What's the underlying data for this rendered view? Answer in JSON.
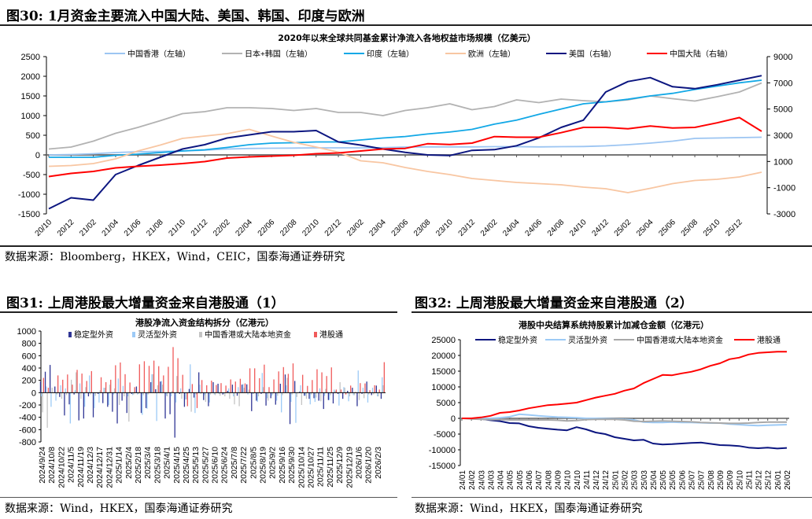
{
  "fig30": {
    "title": "图30:  1月资金主要流入中国大陆、美国、韩国、印度与欧洲",
    "source": "数据来源：Bloomberg，HKEX，Wind，CEIC，国泰海通证券研究"
  },
  "fig31": {
    "title": "图31:  上周港股最大增量资金来自港股通（1）",
    "source": "数据来源：Wind，HKEX，国泰海通证券研究"
  },
  "fig32": {
    "title": "图32:  上周港股最大增量资金来自港股通（2）",
    "source": "数据来源：Wind，HKEX，国泰海通证券研究"
  },
  "chart_data": [
    {
      "type": "line",
      "title": "2020年以来全球共同基金累计净流入各地权益市场规模（亿美元）",
      "x_ticks": [
        "20/10",
        "20/12",
        "21/02",
        "21/04",
        "21/06",
        "21/08",
        "21/10",
        "21/12",
        "22/02",
        "22/04",
        "22/06",
        "22/08",
        "22/10",
        "22/12",
        "23/02",
        "23/04",
        "23/06",
        "23/08",
        "23/10",
        "23/12",
        "24/02",
        "24/04",
        "24/06",
        "24/08",
        "24/10",
        "24/12",
        "25/02",
        "25/04",
        "25/06",
        "25/08",
        "25/10",
        "25/12"
      ],
      "y_left": {
        "range": [
          -1500,
          2500
        ],
        "ticks": [
          -1500,
          -1000,
          -500,
          0,
          500,
          1000,
          1500,
          2000,
          2500
        ]
      },
      "y_right": {
        "range": [
          -3000,
          9000
        ],
        "ticks": [
          -3000,
          -1000,
          1000,
          3000,
          5000,
          7000,
          9000
        ]
      },
      "grid": false,
      "legend_position": "top",
      "series": [
        {
          "name": "中国香港（左轴）",
          "axis": "left",
          "color": "#9cc5f2",
          "values": [
            0,
            10,
            30,
            60,
            80,
            90,
            100,
            120,
            150,
            165,
            170,
            175,
            180,
            180,
            180,
            185,
            200,
            205,
            205,
            205,
            210,
            210,
            205,
            210,
            215,
            230,
            260,
            300,
            350,
            420,
            430,
            440,
            450
          ]
        },
        {
          "name": "日本+韩国（左轴）",
          "axis": "left",
          "color": "#b2b2b2",
          "values": [
            150,
            200,
            350,
            550,
            700,
            870,
            1050,
            1100,
            1200,
            1200,
            1180,
            1130,
            1180,
            1080,
            1080,
            1000,
            1130,
            1200,
            1300,
            1150,
            1230,
            1400,
            1330,
            1420,
            1380,
            1350,
            1400,
            1500,
            1430,
            1370,
            1480,
            1600,
            1830
          ]
        },
        {
          "name": "印度（左轴）",
          "axis": "left",
          "color": "#12a8e6",
          "values": [
            -60,
            -60,
            -60,
            -10,
            20,
            60,
            100,
            130,
            190,
            260,
            300,
            310,
            330,
            330,
            380,
            430,
            467,
            533,
            583,
            650,
            783,
            883,
            1033,
            1167,
            1300,
            1350,
            1417,
            1500,
            1567,
            1667,
            1750,
            1833,
            1900
          ]
        },
        {
          "name": "欧洲（左轴）",
          "axis": "left",
          "color": "#f8c6a2",
          "values": [
            -290,
            -270,
            -220,
            -100,
            100,
            250,
            420,
            480,
            540,
            650,
            480,
            320,
            200,
            70,
            -150,
            -200,
            -320,
            -420,
            -500,
            -600,
            -650,
            -700,
            -730,
            -760,
            -820,
            -860,
            -960,
            -850,
            -730,
            -650,
            -620,
            -560,
            -440
          ]
        },
        {
          "name": "美国（右轴）",
          "axis": "right",
          "color": "#0c1680",
          "values": [
            -2610,
            -1770,
            -1950,
            0,
            690,
            1320,
            1950,
            2280,
            2790,
            3030,
            3270,
            3270,
            3360,
            2490,
            2250,
            1950,
            1700,
            1500,
            1450,
            1850,
            1900,
            2200,
            2800,
            3600,
            4150,
            6300,
            7100,
            7400,
            6700,
            6550,
            6850,
            7200,
            7550
          ]
        },
        {
          "name": "中国大陆（右轴）",
          "axis": "right",
          "color": "#ff0000",
          "values": [
            -150,
            90,
            240,
            510,
            630,
            720,
            840,
            990,
            1260,
            1350,
            1410,
            1470,
            1590,
            1650,
            1800,
            1950,
            2000,
            2350,
            2300,
            2400,
            2900,
            2850,
            2850,
            3200,
            3600,
            3600,
            3500,
            3700,
            3550,
            3600,
            3950,
            4350,
            3300
          ]
        }
      ]
    },
    {
      "type": "bar",
      "title": "港股净流入资金结构拆分（亿港元）",
      "x_ticks": [
        "2024/9/24",
        "2024/10/8",
        "2024/10/22",
        "2024/11/5",
        "2024/11/19",
        "2024/12/3",
        "2024/12/17",
        "2024/12/31",
        "2025/1/14",
        "2025/2/4",
        "2025/2/18",
        "2025/3/4",
        "2025/3/18",
        "2025/4/1",
        "2025/4/15",
        "2025/4/25",
        "2025/5/13",
        "2025/5/27",
        "2025/6/10",
        "2025/6/24",
        "2025/7/8",
        "2025/7/22",
        "2025/8/5",
        "2025/8/19",
        "2025/9/2",
        "2025/9/16",
        "2025/9/30",
        "2025/10/14",
        "2025/10/27",
        "2025/11/11",
        "2025/11/25",
        "2025/12/9",
        "2025/12/19",
        "2026/1/6",
        "2026/1/20",
        "2026/2/3"
      ],
      "y": {
        "range": [
          -800,
          1000
        ],
        "ticks": [
          -800,
          -600,
          -400,
          -200,
          0,
          200,
          400,
          600,
          800,
          1000
        ]
      },
      "grid": false,
      "legend_position": "top",
      "series": [
        {
          "name": "稳定型外资",
          "color": "#2f3595",
          "values": [
            180,
            340,
            450,
            100,
            -70,
            -370,
            -190,
            -30,
            -450,
            -420,
            -60,
            -400,
            -20,
            -170,
            -230,
            -310,
            -500,
            -130,
            -330,
            -20,
            100,
            -330,
            -250,
            170,
            55,
            180,
            -420,
            -350,
            -730,
            -20,
            -230,
            60,
            -80,
            330,
            -120,
            -220,
            170,
            145,
            -30,
            30,
            130,
            -50,
            130,
            135,
            -300,
            -130,
            -20,
            -210,
            -90,
            -195,
            145,
            295,
            -510,
            190,
            15,
            -50,
            -100,
            -90,
            -130,
            -265,
            -120,
            -175,
            -20,
            -100,
            30,
            80,
            -220,
            -20,
            180,
            -40,
            115,
            -100
          ]
        },
        {
          "name": "灵活型外资",
          "color": "#9ccaf6",
          "values": [
            -60,
            100,
            -230,
            -130,
            120,
            70,
            -500,
            40,
            150,
            -230,
            280,
            -250,
            -160,
            80,
            -200,
            -30,
            230,
            110,
            -60,
            -40,
            -30,
            -360,
            -260,
            300,
            -460,
            190,
            -50,
            -60,
            -160,
            70,
            -110,
            460,
            -330,
            130,
            -40,
            -160,
            -30,
            -20,
            -20,
            70,
            -60,
            90,
            140,
            -30,
            -20,
            -150,
            320,
            -90,
            -50,
            -130,
            -320,
            120,
            -150,
            -490,
            120,
            -50,
            -190,
            -150,
            70,
            -50,
            -120,
            50,
            -210,
            90,
            -140,
            -40,
            360,
            80,
            -160,
            80,
            -60,
            250
          ]
        },
        {
          "name": "中国香港或大陆本地资金",
          "color": "#c4c4c4",
          "values": [
            -320,
            -570,
            80,
            -30,
            -100,
            -40,
            210,
            330,
            -100,
            90,
            -30,
            -50,
            40,
            80,
            130,
            70,
            -200,
            -60,
            -470,
            -30,
            -20,
            -40,
            -30,
            300,
            120,
            130,
            -60,
            30,
            270,
            -100,
            -110,
            -310,
            -30,
            -20,
            -150,
            -30,
            -40,
            -50,
            -60,
            -100,
            -190,
            -220,
            80,
            50,
            -20,
            -60,
            90,
            -130,
            -30,
            -50,
            -40,
            240,
            -30,
            -70,
            -200,
            -100,
            -30,
            -80,
            -140,
            60,
            -40,
            30,
            170,
            80,
            -60,
            -40,
            -120,
            -90,
            -30,
            -30,
            -60,
            120
          ]
        },
        {
          "name": "港股通",
          "color": "#f05a5a",
          "values": [
            240,
            80,
            0,
            280,
            210,
            295,
            130,
            370,
            310,
            190,
            350,
            0,
            250,
            170,
            210,
            445,
            490,
            300,
            165,
            90,
            460,
            510,
            435,
            520,
            430,
            280,
            420,
            740,
            560,
            290,
            -220,
            140,
            -250,
            205,
            120,
            195,
            125,
            155,
            115,
            215,
            180,
            225,
            150,
            395,
            395,
            235,
            455,
            90,
            215,
            345,
            415,
            305,
            475,
            0,
            290,
            110,
            205,
            380,
            330,
            270,
            410,
            50,
            50,
            -30,
            115,
            10,
            155,
            150,
            40,
            120,
            50,
            495
          ]
        }
      ]
    },
    {
      "type": "line",
      "title": "港股中央结算系统持股累计加减仓金额（亿港元）",
      "x_ticks": [
        "24/01",
        "24/02",
        "24/03",
        "24/03",
        "24/04",
        "24/05",
        "24/05",
        "24/06",
        "24/07",
        "24/08",
        "24/09",
        "24/10",
        "24/10",
        "24/11",
        "24/12",
        "24/12",
        "25/01",
        "25/02",
        "25/03",
        "25/03",
        "25/04",
        "25/05",
        "25/05",
        "25/06",
        "25/07",
        "25/07",
        "25/08",
        "25/09",
        "25/09",
        "25/10",
        "25/11",
        "25/12",
        "25/12",
        "26/01",
        "26/02"
      ],
      "y": {
        "range": [
          -15000,
          25000
        ],
        "ticks": [
          -15000,
          -10000,
          -5000,
          0,
          5000,
          10000,
          15000,
          20000,
          25000
        ]
      },
      "grid": false,
      "legend_position": "top",
      "series": [
        {
          "name": "稳定型外资",
          "color": "#0c1680",
          "values": [
            0,
            0,
            -200,
            -600,
            -900,
            -1500,
            -1600,
            -2500,
            -3000,
            -3300,
            -3600,
            -3800,
            -2800,
            -3500,
            -4500,
            -5000,
            -6000,
            -6500,
            -7000,
            -6800,
            -8000,
            -8300,
            -8200,
            -8000,
            -7800,
            -7700,
            -8100,
            -8500,
            -8600,
            -8800,
            -9300,
            -9500,
            -9300,
            -9600,
            -9400
          ]
        },
        {
          "name": "灵活型外资",
          "color": "#9ccaf6",
          "values": [
            0,
            0,
            0,
            0,
            200,
            500,
            1300,
            1100,
            800,
            600,
            400,
            300,
            200,
            0,
            0,
            -100,
            -200,
            -300,
            -500,
            -1200,
            -1300,
            -1300,
            -1200,
            -1300,
            -1300,
            -1400,
            -1500,
            -1500,
            -1800,
            -2000,
            -2200,
            -2300,
            -2200,
            -2100,
            -2000
          ]
        },
        {
          "name": "中国香港或大陆本地资金",
          "color": "#a8a8a8",
          "values": [
            0,
            -200,
            -300,
            -400,
            -400,
            -500,
            -500,
            -500,
            -500,
            -500,
            -600,
            -800,
            -700,
            -400,
            -300,
            -300,
            -300,
            -500,
            -900,
            -1000,
            -900,
            -800,
            -900,
            -1000,
            -1100,
            -1300,
            -1400,
            -1500,
            -1600,
            -1600,
            -1500,
            -1300,
            -1200,
            -1200,
            -1200
          ]
        },
        {
          "name": "港股通",
          "color": "#ff0000",
          "values": [
            0,
            0,
            300,
            800,
            1750,
            2000,
            2500,
            3200,
            3700,
            4200,
            4400,
            4700,
            5000,
            5800,
            6600,
            7200,
            7800,
            8800,
            9500,
            11200,
            12500,
            13800,
            13700,
            14300,
            14800,
            15600,
            16700,
            17500,
            18800,
            19300,
            20300,
            20800,
            21000,
            21200,
            21200
          ]
        }
      ]
    }
  ]
}
